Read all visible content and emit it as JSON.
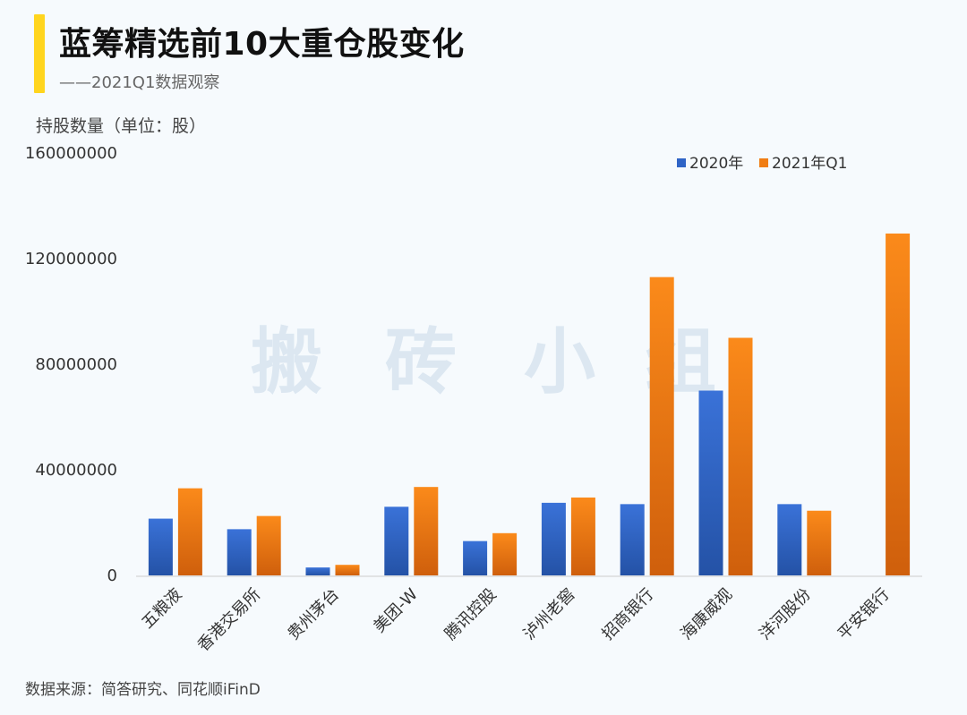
{
  "header": {
    "title": "蓝筹精选前10大重仓股变化",
    "subtitle": "——2021Q1数据观察"
  },
  "watermark": [
    "搬",
    "砖",
    "小",
    "组"
  ],
  "footer": {
    "source": "数据来源：简答研究、同花顺iFinD"
  },
  "colors": {
    "accent": "#ffd51e",
    "series_2020": "#2f64c6",
    "series_2021": "#f07d14"
  },
  "chart_data": {
    "type": "bar",
    "title": "蓝筹精选前10大重仓股变化",
    "ylabel": "持股数量（单位：股）",
    "xlabel": "",
    "ylim": [
      0,
      160000000
    ],
    "yticks": [
      0,
      40000000,
      80000000,
      120000000,
      160000000
    ],
    "ytick_labels": [
      "0",
      "40000000",
      "80000000",
      "120000000",
      "160000000"
    ],
    "grid": false,
    "legend_position": "top-right",
    "categories": [
      "五粮液",
      "香港交易所",
      "贵州茅台",
      "美团-W",
      "腾讯控股",
      "泸州老窖",
      "招商银行",
      "海康威视",
      "洋河股份",
      "平安银行"
    ],
    "series": [
      {
        "name": "2020年",
        "values": [
          21500000,
          17500000,
          3000000,
          26000000,
          13000000,
          27500000,
          27000000,
          70000000,
          27000000,
          0
        ]
      },
      {
        "name": "2021年Q1",
        "values": [
          33000000,
          22500000,
          4000000,
          33500000,
          16000000,
          29500000,
          113000000,
          90000000,
          24500000,
          129500000
        ]
      }
    ]
  }
}
